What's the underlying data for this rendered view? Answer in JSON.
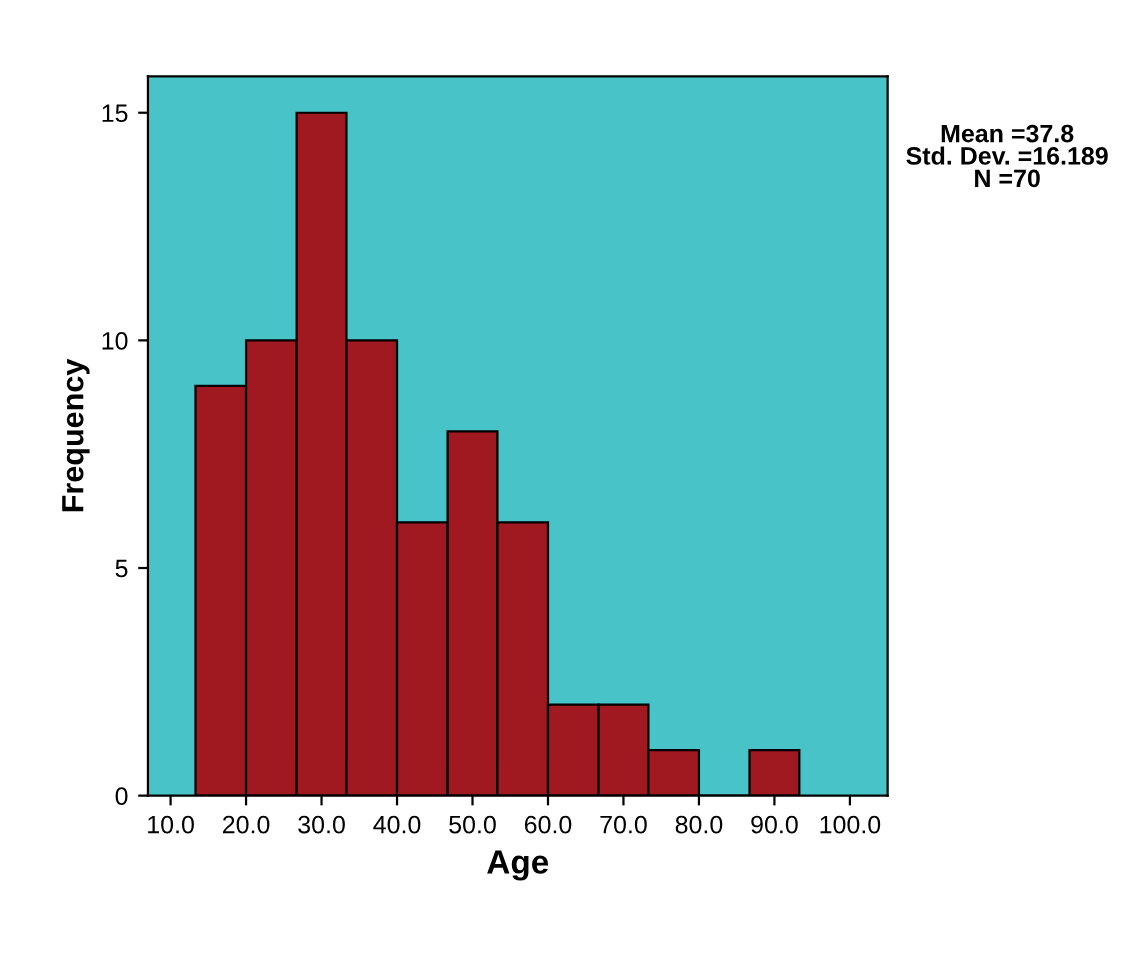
{
  "chart_data": {
    "type": "histogram",
    "xlabel": "Age",
    "ylabel": "Frequency",
    "bins": [
      13.3,
      20.0,
      26.7,
      33.3,
      40.0,
      46.7,
      53.3,
      60.0,
      66.7,
      73.3,
      80.0,
      86.7,
      93.3
    ],
    "values": [
      9,
      10,
      15,
      10,
      6,
      8,
      6,
      2,
      2,
      1,
      0,
      1
    ],
    "color": "#a01820",
    "xlim": [
      7,
      105
    ],
    "xticks": [
      {
        "value": 10,
        "label": "10.0"
      },
      {
        "value": 20,
        "label": "20.0"
      },
      {
        "value": 30,
        "label": "30.0"
      },
      {
        "value": 40,
        "label": "40.0"
      },
      {
        "value": 50,
        "label": "50.0"
      },
      {
        "value": 60,
        "label": "60.0"
      },
      {
        "value": 70,
        "label": "70.0"
      },
      {
        "value": 80,
        "label": "80.0"
      },
      {
        "value": 90,
        "label": "90.0"
      },
      {
        "value": 100,
        "label": "100.0"
      }
    ],
    "ylim": [
      0,
      15.8
    ],
    "yticks": [
      0,
      5,
      10,
      15
    ],
    "grid": false,
    "legend": false,
    "annotations": [
      "Mean =37.8\nStd. Dev. =16.189\nN =70"
    ]
  }
}
